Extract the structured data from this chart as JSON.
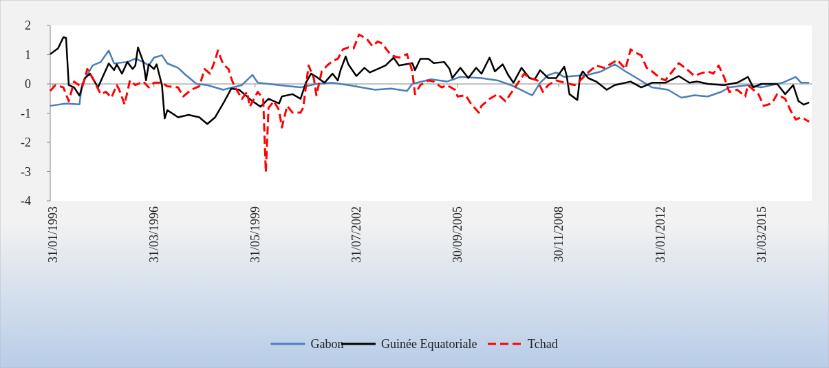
{
  "chart_data": {
    "type": "line",
    "ylim": [
      -4,
      2
    ],
    "yticks": [
      -4,
      -3,
      -2,
      -1,
      0,
      1,
      2
    ],
    "xlim": [
      "1993-01",
      "2016-10-31"
    ],
    "ref_lines": [
      {
        "axis": "y",
        "value": 0,
        "color": "#868686"
      }
    ],
    "xticks": [
      {
        "value": "1993-01-31",
        "label": "31/01/1993"
      },
      {
        "value": "1996-03-31",
        "label": "31/03/1996"
      },
      {
        "value": "1999-05-31",
        "label": "31/05/1999"
      },
      {
        "value": "2002-07-31",
        "label": "31/07/2002"
      },
      {
        "value": "2005-09-30",
        "label": "30/09/2005"
      },
      {
        "value": "2008-11-30",
        "label": "30/11/2008"
      },
      {
        "value": "2012-01-31",
        "label": "31/01/2012"
      },
      {
        "value": "2015-03-31",
        "label": "31/03/2015"
      }
    ],
    "grid": false,
    "legend": "bottom",
    "marker": "none",
    "series": [
      {
        "name": "Gabon",
        "color": "#4a7ebb",
        "line_style": "solid",
        "x": [
          "1993-01",
          "1993-07",
          "1993-12",
          "1994-01",
          "1994-05",
          "1994-08",
          "1994-11",
          "1995-01",
          "1995-06",
          "1995-09",
          "1995-12",
          "1996-02",
          "1996-04",
          "1996-07",
          "1996-09",
          "1997-01",
          "1997-04",
          "1997-08",
          "1997-12",
          "1998-06",
          "1999-01",
          "1999-05",
          "1999-07",
          "1999-11",
          "2000-03",
          "2000-11",
          "2001-05",
          "2001-11",
          "2002-05",
          "2003-03",
          "2003-09",
          "2004-03",
          "2004-05",
          "2004-12",
          "2005-06",
          "2005-11",
          "2006-07",
          "2007-01",
          "2007-06",
          "2008-02",
          "2008-05",
          "2008-08",
          "2008-11",
          "2009-02",
          "2009-11",
          "2010-04",
          "2010-09",
          "2011-01",
          "2011-04",
          "2011-11",
          "2012-05",
          "2012-10",
          "2013-03",
          "2013-08",
          "2014-01",
          "2014-04",
          "2014-11",
          "2015-04",
          "2015-12",
          "2016-05",
          "2016-07",
          "2016-10"
        ],
        "values": [
          -0.75,
          -0.67,
          -0.7,
          0,
          0.63,
          0.75,
          1.14,
          0.7,
          0.75,
          0.86,
          0.75,
          0.63,
          0.9,
          0.98,
          0.7,
          0.55,
          0.3,
          0,
          -0.04,
          -0.2,
          -0.04,
          0.31,
          0.04,
          0,
          -0.04,
          -0.12,
          0,
          0.04,
          -0.04,
          -0.2,
          -0.16,
          -0.24,
          0,
          0.16,
          0.08,
          0.24,
          0.2,
          0.12,
          -0.04,
          -0.39,
          0.04,
          0.3,
          0.39,
          0.24,
          0.31,
          0.43,
          0.67,
          0.43,
          0.27,
          -0.12,
          -0.2,
          -0.47,
          -0.39,
          -0.43,
          -0.27,
          -0.12,
          -0.04,
          -0.12,
          0.04,
          0.24,
          0.04,
          0.04
        ]
      },
      {
        "name": "Guinée Equatoriale",
        "color": "#000000",
        "line_style": "solid",
        "x": [
          "1993-01",
          "1993-04",
          "1993-06",
          "1993-07",
          "1993-08",
          "1993-10",
          "1993-12",
          "1994-02",
          "1994-04",
          "1994-07",
          "1994-11",
          "1995-01",
          "1995-02",
          "1995-04",
          "1995-06",
          "1995-08",
          "1995-09",
          "1995-10",
          "1995-12",
          "1996-01",
          "1996-02",
          "1996-04",
          "1996-05",
          "1996-07",
          "1996-08",
          "1996-09",
          "1997-01",
          "1997-05",
          "1997-09",
          "1997-12",
          "1998-03",
          "1998-06",
          "1998-09",
          "1998-12",
          "1999-05",
          "1999-08",
          "1999-11",
          "2000-03",
          "2000-04",
          "2000-08",
          "2000-11",
          "2001-01",
          "2001-03",
          "2001-05",
          "2001-08",
          "2001-11",
          "2002-01",
          "2002-02",
          "2002-04",
          "2002-05",
          "2002-08",
          "2002-11",
          "2003-01",
          "2003-05",
          "2003-07",
          "2003-10",
          "2003-12",
          "2004-05",
          "2004-06",
          "2004-08",
          "2004-11",
          "2005-01",
          "2005-05",
          "2005-07",
          "2005-08",
          "2005-11",
          "2006-02",
          "2006-05",
          "2006-07",
          "2006-10",
          "2006-12",
          "2007-03",
          "2007-05",
          "2007-07",
          "2007-10",
          "2008-01",
          "2008-03",
          "2008-05",
          "2008-08",
          "2008-11",
          "2009-02",
          "2009-03",
          "2009-04",
          "2009-07",
          "2009-08",
          "2009-09",
          "2009-11",
          "2010-02",
          "2010-06",
          "2010-09",
          "2011-03",
          "2011-07",
          "2011-11",
          "2012-04",
          "2012-09",
          "2013-01",
          "2013-04",
          "2013-08",
          "2014-02",
          "2014-07",
          "2014-11",
          "2015-01",
          "2015-04",
          "2015-10",
          "2016-01",
          "2016-04",
          "2016-06",
          "2016-08",
          "2016-10"
        ],
        "values": [
          1.02,
          1.22,
          1.6,
          1.57,
          -0.04,
          -0.12,
          -0.4,
          0.2,
          0.35,
          -0.12,
          0.7,
          0.47,
          0.67,
          0.35,
          0.75,
          0.51,
          0.63,
          1.25,
          0.75,
          0.12,
          0.67,
          0.51,
          0.67,
          -0.04,
          -1.18,
          -0.9,
          -1.14,
          -1.06,
          -1.14,
          -1.37,
          -1.14,
          -0.67,
          -0.16,
          -0.2,
          -0.59,
          -0.78,
          -0.51,
          -0.67,
          -0.43,
          -0.35,
          -0.51,
          0.04,
          0.35,
          0.24,
          0.04,
          0.35,
          0.12,
          0.47,
          0.94,
          0.67,
          0.27,
          0.55,
          0.39,
          0.55,
          0.63,
          0.9,
          0.63,
          0.71,
          0.47,
          0.86,
          0.86,
          0.71,
          0.75,
          0.51,
          0.2,
          0.55,
          0.2,
          0.55,
          0.35,
          0.9,
          0.43,
          0.67,
          0.31,
          0.04,
          0.55,
          0.2,
          0.16,
          0.47,
          0.2,
          0.2,
          0.59,
          0.27,
          -0.35,
          -0.55,
          0.27,
          0.43,
          0.2,
          0.08,
          -0.2,
          -0.04,
          0.08,
          -0.12,
          0.04,
          0.04,
          0.27,
          0.04,
          0.08,
          0,
          -0.04,
          0.04,
          0.24,
          -0.12,
          0,
          0,
          -0.35,
          -0.04,
          -0.59,
          -0.71,
          -0.63
        ]
      },
      {
        "name": "Tchad",
        "color": "#ff0000",
        "line_style": "dashed",
        "x": [
          "1993-01",
          "1993-03",
          "1993-06",
          "1993-08",
          "1993-10",
          "1994-01",
          "1994-03",
          "1994-05",
          "1994-08",
          "1994-10",
          "1994-12",
          "1995-02",
          "1995-03",
          "1995-05",
          "1995-07",
          "1995-09",
          "1995-12",
          "1996-02",
          "1996-04",
          "1996-07",
          "1996-09",
          "1997-01",
          "1997-03",
          "1997-06",
          "1997-09",
          "1997-11",
          "1998-01",
          "1998-03",
          "1998-04",
          "1998-06",
          "1998-08",
          "1998-09",
          "1998-10",
          "1999-01",
          "1999-03",
          "1999-04",
          "1999-07",
          "1999-09",
          "1999-10",
          "1999-11",
          "2000-01",
          "2000-03",
          "2000-04",
          "2000-06",
          "2000-08",
          "2000-11",
          "2000-12",
          "2001-02",
          "2001-04",
          "2001-05",
          "2001-07",
          "2001-09",
          "2001-11",
          "2002-01",
          "2002-03",
          "2002-05",
          "2002-07",
          "2002-09",
          "2002-12",
          "2003-02",
          "2003-04",
          "2003-06",
          "2003-07",
          "2003-09",
          "2003-12",
          "2004-03",
          "2004-05",
          "2004-06",
          "2004-08",
          "2004-11",
          "2005-01",
          "2005-04",
          "2005-06",
          "2005-09",
          "2005-10",
          "2006-01",
          "2006-03",
          "2006-06",
          "2006-07",
          "2006-10",
          "2007-01",
          "2007-04",
          "2007-07",
          "2007-11",
          "2008-01",
          "2008-04",
          "2008-06",
          "2008-08",
          "2008-11",
          "2009-02",
          "2009-06",
          "2009-08",
          "2009-11",
          "2010-02",
          "2010-05",
          "2010-08",
          "2010-10",
          "2011-01",
          "2011-03",
          "2011-05",
          "2011-07",
          "2011-09",
          "2011-11",
          "2012-02",
          "2012-04",
          "2012-07",
          "2012-09",
          "2012-12",
          "2013-03",
          "2013-05",
          "2013-08",
          "2013-10",
          "2013-12",
          "2014-02",
          "2014-04",
          "2014-07",
          "2014-10",
          "2014-11",
          "2015-03",
          "2015-05",
          "2015-08",
          "2015-10",
          "2016-01",
          "2016-03",
          "2016-05",
          "2016-07",
          "2016-10"
        ],
        "values": [
          -0.24,
          -0.04,
          -0.12,
          -0.59,
          0.08,
          -0.12,
          0.51,
          0.2,
          -0.35,
          -0.27,
          -0.47,
          -0.04,
          -0.2,
          -0.7,
          0.12,
          -0.04,
          0.08,
          -0.12,
          0.04,
          0.04,
          -0.08,
          -0.12,
          -0.43,
          -0.2,
          -0.08,
          0.51,
          0.35,
          0.82,
          1.14,
          0.67,
          0.51,
          0.2,
          -0.04,
          -0.51,
          -0.27,
          -0.78,
          -0.27,
          -0.51,
          -3.02,
          -0.82,
          -0.59,
          -0.9,
          -1.49,
          -0.75,
          -0.98,
          -0.98,
          -0.82,
          0.63,
          0.2,
          -0.39,
          0.43,
          0.63,
          0.78,
          0.86,
          1.18,
          1.25,
          1.22,
          1.69,
          1.53,
          1.29,
          1.45,
          1.37,
          1.22,
          0.98,
          0.9,
          1.02,
          0.43,
          -0.35,
          -0.04,
          0.12,
          0.08,
          -0.12,
          -0.04,
          -0.2,
          -0.43,
          -0.39,
          -0.67,
          -0.98,
          -0.75,
          -0.51,
          -0.35,
          -0.59,
          -0.2,
          0.35,
          0.2,
          0.12,
          -0.27,
          -0.04,
          0.12,
          0.04,
          -0.04,
          0.12,
          0.39,
          0.63,
          0.55,
          0.71,
          0.82,
          0.51,
          1.18,
          1.06,
          0.98,
          0.55,
          0.43,
          0.2,
          0.12,
          0.47,
          0.71,
          0.51,
          0.27,
          0.35,
          0.43,
          0.35,
          0.63,
          0.24,
          -0.27,
          -0.2,
          -0.43,
          -0.04,
          -0.35,
          -0.75,
          -0.67,
          -0.35,
          -0.51,
          -0.9,
          -1.22,
          -1.14,
          -1.29
        ]
      }
    ]
  }
}
